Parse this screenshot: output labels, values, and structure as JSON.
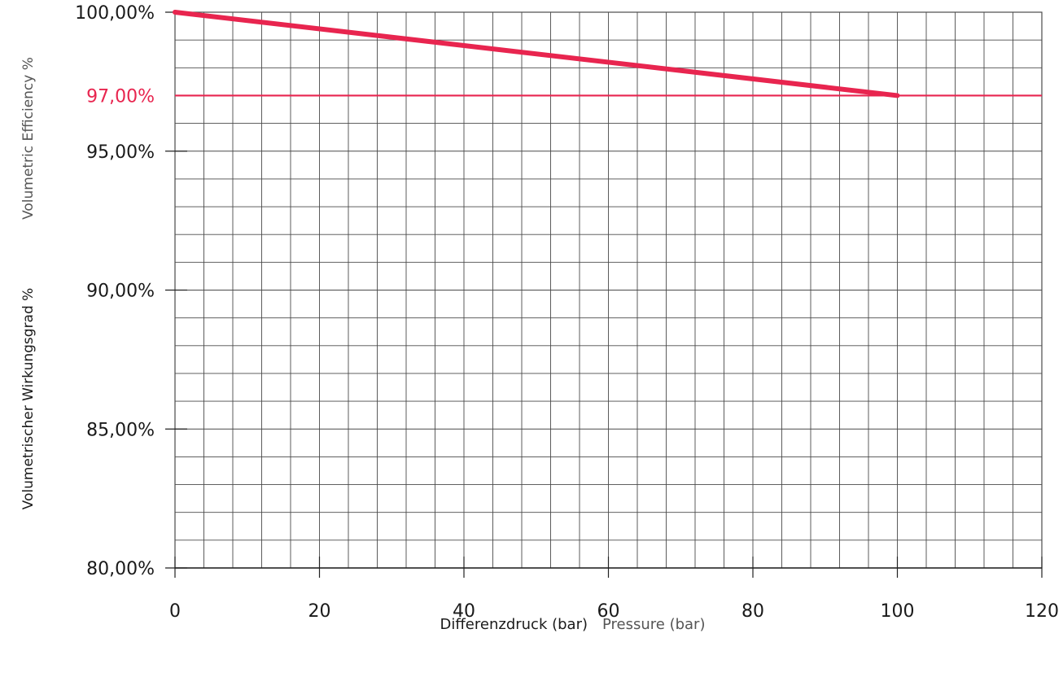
{
  "chart_data": {
    "type": "line",
    "xlabel_primary": "Differenzdruck (bar)",
    "xlabel_secondary": "Pressure (bar)",
    "ylabel_primary": "Volumetrischer Wirkungsgrad %",
    "ylabel_secondary": "Volumetric Efficiency %",
    "xlim": [
      0,
      120
    ],
    "ylim": [
      80,
      100
    ],
    "x_ticks": [
      {
        "value": 0,
        "label": "0"
      },
      {
        "value": 20,
        "label": "20"
      },
      {
        "value": 40,
        "label": "40"
      },
      {
        "value": 60,
        "label": "60"
      },
      {
        "value": 80,
        "label": "80"
      },
      {
        "value": 100,
        "label": "100"
      },
      {
        "value": 120,
        "label": "120"
      }
    ],
    "y_ticks": [
      {
        "value": 80,
        "label": "80,00%"
      },
      {
        "value": 85,
        "label": "85,00%"
      },
      {
        "value": 90,
        "label": "90,00%"
      },
      {
        "value": 95,
        "label": "95,00%"
      },
      {
        "value": 100,
        "label": "100,00%"
      }
    ],
    "grid": true,
    "minor_grid_x_step": 4,
    "minor_grid_y_step": 1,
    "series": [
      {
        "x": [
          0,
          100
        ],
        "y": [
          100,
          97
        ],
        "color": "#e8254f"
      }
    ],
    "reference_line": {
      "y": 97,
      "label": "97,00%",
      "color": "#e8254f"
    },
    "colors": {
      "grid": "#4a4a4a",
      "text": "#1a1a1a",
      "secondary_text": "#555555",
      "accent": "#e8254f"
    }
  }
}
